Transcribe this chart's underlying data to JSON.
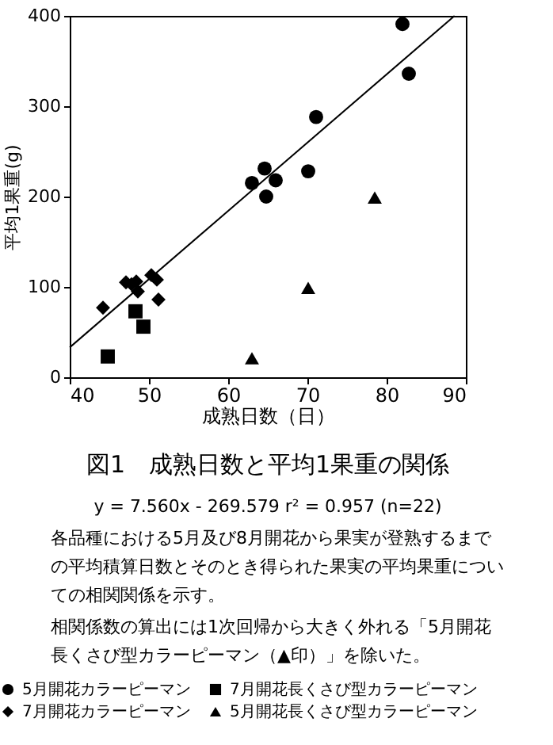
{
  "chart_data": {
    "type": "scatter",
    "title": "図1　成熟日数と平均1果重の関係",
    "xlabel": "成熟日数（日）",
    "ylabel": "平均1果重(g)",
    "xlim": [
      40,
      90
    ],
    "xticks": [
      40,
      50,
      60,
      70,
      80,
      90
    ],
    "ylim": [
      0,
      400
    ],
    "yticks": [
      0,
      100,
      200,
      300,
      400
    ],
    "grid": false,
    "legend": "bottom left",
    "series": [
      {
        "name": "5月開花カラーピーマン",
        "color": "#000000",
        "marker": "circle",
        "x": [
          82.0,
          82.8,
          71.1,
          70.1,
          64.6,
          66.0,
          63.0,
          64.8
        ],
        "values": [
          391,
          336,
          288,
          228,
          231,
          218,
          215,
          200
        ]
      },
      {
        "name": "7月開花カラーピーマン",
        "color": "#000000",
        "marker": "diamond",
        "x": [
          44.2,
          47.1,
          47.8,
          48.4,
          48.6,
          50.3,
          51.0,
          51.2
        ],
        "values": [
          77,
          105,
          103,
          106,
          95,
          113,
          108,
          86
        ]
      },
      {
        "name": "7月開花長くさび型カラーピーマン",
        "color": "#000000",
        "marker": "square",
        "x": [
          44.8,
          48.3,
          49.3
        ],
        "values": [
          23,
          73,
          56
        ]
      },
      {
        "name": "5月開花長くさび型カラーピーマン",
        "color": "#000000",
        "marker": "triangle",
        "x": [
          63.0,
          70.1,
          78.5
        ],
        "values": [
          21,
          99,
          199
        ]
      },
      {
        "type": "line",
        "color": "#000000",
        "line_style": "solid",
        "x": [
          40,
          88.57
        ],
        "values": [
          33,
          400
        ]
      }
    ],
    "annotations": [
      "y = 7.560x - 269.579  r² = 0.957  (n=22)",
      "各品種における5月及び8月開花から果実が登熟するまでの平均積算日数とそのとき得られた果実の平均果重についての相関関係を示す。",
      "相関係数の算出には1次回帰から大きく外れる「5月開花長くさび型カラーピーマン（▲印）」を除いた。"
    ]
  }
}
